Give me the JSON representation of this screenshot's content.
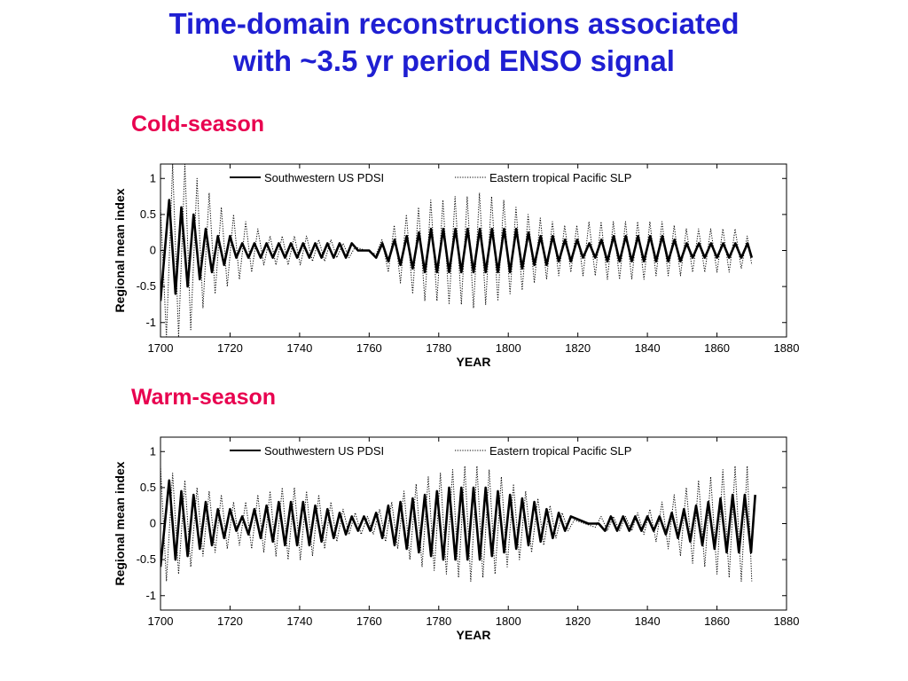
{
  "title": {
    "line1": "Time-domain reconstructions associated",
    "line2": "with ~3.5 yr period ENSO signal"
  },
  "panels": [
    {
      "label": "Cold-season"
    },
    {
      "label": "Warm-season"
    }
  ],
  "chart_data": [
    {
      "type": "line",
      "xlabel": "YEAR",
      "ylabel": "Regional mean index",
      "xlim": [
        1700,
        1880
      ],
      "ylim": [
        -1.2,
        1.2
      ],
      "xticks": [
        1700,
        1720,
        1740,
        1760,
        1780,
        1800,
        1820,
        1840,
        1860,
        1880
      ],
      "yticks": [
        1,
        0.5,
        0,
        -0.5,
        -1
      ],
      "ytick_labels": [
        "1",
        "0.5",
        "0",
        "-0.5",
        "-1"
      ],
      "grid": false,
      "legend_position": "top",
      "series": [
        {
          "name": "Southwestern US PDSI",
          "style": "solid",
          "x": [
            1700,
            1702.5,
            1704.3,
            1706,
            1707.8,
            1709.5,
            1711.3,
            1713,
            1714.8,
            1716.5,
            1718.3,
            1720,
            1721.8,
            1723.5,
            1725.3,
            1727,
            1728.8,
            1730.5,
            1732.3,
            1734,
            1735.8,
            1737.5,
            1739.3,
            1741,
            1742.8,
            1744.5,
            1746.3,
            1748,
            1749.8,
            1751.5,
            1753.3,
            1755,
            1756.8,
            1760,
            1762,
            1763.8,
            1765.5,
            1767.3,
            1769,
            1770.8,
            1772.5,
            1774.3,
            1776,
            1777.8,
            1779.5,
            1781.3,
            1783,
            1784.8,
            1786.5,
            1788.3,
            1790,
            1791.8,
            1793.5,
            1795.3,
            1797,
            1798.8,
            1800.5,
            1802.3,
            1804,
            1805.8,
            1807.5,
            1809.3,
            1811,
            1812.8,
            1814.5,
            1816.3,
            1818,
            1819.8,
            1821.5,
            1823.3,
            1825,
            1826.8,
            1828.5,
            1830.3,
            1832,
            1833.8,
            1835.5,
            1837.3,
            1839,
            1840.8,
            1842.5,
            1844.3,
            1846,
            1847.8,
            1849.5,
            1851.3,
            1853,
            1854.8,
            1856.5,
            1858.3,
            1860,
            1861.8,
            1863.5,
            1865.3,
            1867,
            1868.8,
            1870
          ],
          "y": [
            -0.7,
            0.7,
            -0.6,
            0.6,
            -0.5,
            0.5,
            -0.4,
            0.3,
            -0.3,
            0.2,
            -0.2,
            0.2,
            -0.1,
            0.1,
            -0.1,
            0.1,
            -0.1,
            0.1,
            -0.1,
            0.1,
            -0.1,
            0.1,
            -0.1,
            0.1,
            -0.1,
            0.1,
            -0.1,
            0.1,
            -0.1,
            0.1,
            -0.1,
            0.1,
            0,
            0,
            -0.1,
            0.1,
            -0.15,
            0.15,
            -0.2,
            0.2,
            -0.25,
            0.25,
            -0.3,
            0.3,
            -0.3,
            0.3,
            -0.3,
            0.3,
            -0.3,
            0.3,
            -0.3,
            0.3,
            -0.3,
            0.3,
            -0.3,
            0.3,
            -0.3,
            0.3,
            -0.25,
            0.25,
            -0.2,
            0.2,
            -0.2,
            0.2,
            -0.15,
            0.15,
            -0.15,
            0.15,
            -0.1,
            0.1,
            -0.1,
            0.15,
            -0.15,
            0.2,
            -0.15,
            0.2,
            -0.15,
            0.2,
            -0.15,
            0.2,
            -0.15,
            0.2,
            -0.15,
            0.15,
            -0.15,
            0.1,
            -0.1,
            0.1,
            -0.1,
            0.1,
            -0.1,
            0.1,
            -0.1,
            0.1,
            -0.1,
            0.1,
            -0.1
          ]
        },
        {
          "name": "Eastern tropical Pacific SLP",
          "style": "dotted",
          "x": [
            1700,
            1701.7,
            1703.5,
            1705.2,
            1707,
            1708.7,
            1710.5,
            1712.2,
            1714,
            1715.7,
            1717.5,
            1719.2,
            1721,
            1722.7,
            1724.5,
            1726.2,
            1728,
            1729.7,
            1731.5,
            1733.2,
            1735,
            1736.7,
            1738.5,
            1740.2,
            1742,
            1743.7,
            1745.5,
            1747.2,
            1749,
            1750.7,
            1752.5,
            1754.2,
            1756,
            1759,
            1762,
            1763.7,
            1765.5,
            1767.2,
            1769,
            1770.7,
            1772.5,
            1774.2,
            1776,
            1777.7,
            1779.5,
            1781.2,
            1783,
            1784.7,
            1786.5,
            1788.2,
            1790,
            1791.7,
            1793.5,
            1795.2,
            1797,
            1798.7,
            1800.5,
            1802.2,
            1804,
            1805.7,
            1807.5,
            1809.2,
            1811,
            1812.7,
            1814.5,
            1816.2,
            1818,
            1819.7,
            1821.5,
            1823.2,
            1825,
            1826.7,
            1828.5,
            1830.2,
            1832,
            1833.7,
            1835.5,
            1837.2,
            1839,
            1840.7,
            1842.5,
            1844.2,
            1846,
            1847.7,
            1849.5,
            1851.2,
            1853,
            1854.7,
            1856.5,
            1858.2,
            1860,
            1861.7,
            1863.5,
            1865.2,
            1867,
            1868.7,
            1870
          ],
          "y": [
            0.6,
            -1.2,
            1.2,
            -1.2,
            1.2,
            -1.1,
            1.0,
            -0.8,
            0.8,
            -0.6,
            0.6,
            -0.5,
            0.5,
            -0.4,
            0.4,
            -0.3,
            0.3,
            -0.2,
            0.2,
            -0.2,
            0.2,
            -0.2,
            0.2,
            -0.2,
            0.2,
            -0.15,
            0.15,
            -0.15,
            0.15,
            -0.1,
            0.1,
            -0.1,
            0.05,
            0,
            -0.05,
            0.15,
            -0.3,
            0.35,
            -0.45,
            0.5,
            -0.6,
            0.6,
            -0.7,
            0.7,
            -0.7,
            0.7,
            -0.75,
            0.75,
            -0.75,
            0.75,
            -0.8,
            0.8,
            -0.75,
            0.75,
            -0.7,
            0.7,
            -0.6,
            0.6,
            -0.55,
            0.5,
            -0.45,
            0.45,
            -0.4,
            0.4,
            -0.35,
            0.35,
            -0.3,
            0.35,
            -0.35,
            0.4,
            -0.35,
            0.4,
            -0.4,
            0.4,
            -0.4,
            0.4,
            -0.4,
            0.4,
            -0.4,
            0.4,
            -0.35,
            0.4,
            -0.35,
            0.35,
            -0.35,
            0.3,
            -0.3,
            0.3,
            -0.3,
            0.3,
            -0.3,
            0.3,
            -0.3,
            0.3,
            -0.25,
            0.2,
            -0.2
          ]
        }
      ]
    },
    {
      "type": "line",
      "xlabel": "YEAR",
      "ylabel": "Regional mean index",
      "xlim": [
        1700,
        1880
      ],
      "ylim": [
        -1.2,
        1.2
      ],
      "xticks": [
        1700,
        1720,
        1740,
        1760,
        1780,
        1800,
        1820,
        1840,
        1860,
        1880
      ],
      "yticks": [
        1,
        0.5,
        0,
        -0.5,
        -1
      ],
      "ytick_labels": [
        "1",
        "0.5",
        "0",
        "-0.5",
        "-1"
      ],
      "grid": false,
      "legend_position": "top",
      "series": [
        {
          "name": "Southwestern US PDSI",
          "style": "solid",
          "x": [
            1700,
            1702.5,
            1704.3,
            1706,
            1707.8,
            1709.5,
            1711.3,
            1713,
            1714.8,
            1716.5,
            1718.3,
            1720,
            1721.8,
            1723.5,
            1725.3,
            1727,
            1728.8,
            1730.5,
            1732.3,
            1734,
            1735.8,
            1737.5,
            1739.3,
            1741,
            1742.8,
            1744.5,
            1746.3,
            1748,
            1749.8,
            1751.5,
            1753.3,
            1755,
            1756.8,
            1758.5,
            1760.3,
            1762,
            1763.8,
            1765.5,
            1767.3,
            1769,
            1770.8,
            1772.5,
            1774.3,
            1776,
            1777.8,
            1779.5,
            1781.3,
            1783,
            1784.8,
            1786.5,
            1788.3,
            1790,
            1791.8,
            1793.5,
            1795.3,
            1797,
            1798.8,
            1800.5,
            1802.3,
            1804,
            1805.8,
            1807.5,
            1809.3,
            1811,
            1812.8,
            1814.5,
            1816.3,
            1818,
            1823,
            1826,
            1827.8,
            1829.5,
            1831.3,
            1833,
            1834.8,
            1836.5,
            1838.3,
            1840,
            1841.8,
            1843.5,
            1845.3,
            1847,
            1848.8,
            1850.5,
            1852.3,
            1854,
            1855.8,
            1857.5,
            1859.3,
            1861,
            1862.8,
            1864.5,
            1866.3,
            1868,
            1869.8,
            1871
          ],
          "y": [
            -0.6,
            0.6,
            -0.5,
            0.45,
            -0.45,
            0.4,
            -0.35,
            0.3,
            -0.3,
            0.2,
            -0.2,
            0.2,
            -0.1,
            0.1,
            -0.15,
            0.2,
            -0.2,
            0.25,
            -0.25,
            0.3,
            -0.3,
            0.3,
            -0.3,
            0.3,
            -0.3,
            0.25,
            -0.25,
            0.2,
            -0.2,
            0.15,
            -0.15,
            0.1,
            -0.1,
            0.1,
            -0.1,
            0.15,
            -0.2,
            0.25,
            -0.3,
            0.3,
            -0.35,
            0.35,
            -0.4,
            0.4,
            -0.45,
            0.45,
            -0.5,
            0.5,
            -0.5,
            0.5,
            -0.5,
            0.5,
            -0.5,
            0.5,
            -0.45,
            0.45,
            -0.4,
            0.4,
            -0.35,
            0.35,
            -0.3,
            0.3,
            -0.25,
            0.2,
            -0.2,
            0.15,
            -0.1,
            0.1,
            0,
            0,
            -0.1,
            0.1,
            -0.1,
            0.1,
            -0.1,
            0.1,
            -0.1,
            0.1,
            -0.1,
            0.1,
            -0.15,
            0.15,
            -0.2,
            0.2,
            -0.25,
            0.25,
            -0.3,
            0.3,
            -0.35,
            0.35,
            -0.4,
            0.4,
            -0.4,
            0.4,
            -0.4,
            0.4
          ]
        },
        {
          "name": "Eastern tropical Pacific SLP",
          "style": "dotted",
          "x": [
            1700,
            1701.7,
            1703.5,
            1705.2,
            1707,
            1708.7,
            1710.5,
            1712.2,
            1714,
            1715.7,
            1717.5,
            1719.2,
            1721,
            1722.7,
            1724.5,
            1726.2,
            1728,
            1729.7,
            1731.5,
            1733.2,
            1735,
            1736.7,
            1738.5,
            1740.2,
            1742,
            1743.7,
            1745.5,
            1747.2,
            1749,
            1750.7,
            1752.5,
            1754.2,
            1756,
            1757.7,
            1759.5,
            1761.2,
            1763,
            1764.7,
            1766.5,
            1768.2,
            1770,
            1771.7,
            1773.5,
            1775.2,
            1777,
            1778.7,
            1780.5,
            1782.2,
            1784,
            1785.7,
            1787.5,
            1789.2,
            1791,
            1792.7,
            1794.5,
            1796.2,
            1798,
            1799.7,
            1801.5,
            1803.2,
            1805,
            1806.7,
            1808.5,
            1810.2,
            1812,
            1813.7,
            1815.5,
            1817.2,
            1819,
            1822,
            1825,
            1826.7,
            1828.5,
            1830.2,
            1832,
            1833.7,
            1835.5,
            1837.2,
            1839,
            1840.7,
            1842.5,
            1844.2,
            1846,
            1847.7,
            1849.5,
            1851.2,
            1853,
            1854.7,
            1856.5,
            1858.2,
            1860,
            1861.7,
            1863.5,
            1865.2,
            1867,
            1868.7,
            1870
          ],
          "y": [
            0.8,
            -0.8,
            0.7,
            -0.7,
            0.6,
            -0.6,
            0.5,
            -0.45,
            0.45,
            -0.4,
            0.4,
            -0.35,
            0.3,
            -0.3,
            0.3,
            -0.35,
            0.4,
            -0.4,
            0.45,
            -0.45,
            0.5,
            -0.5,
            0.5,
            -0.5,
            0.45,
            -0.45,
            0.4,
            -0.35,
            0.3,
            -0.25,
            0.2,
            -0.15,
            0.15,
            -0.15,
            0.1,
            -0.15,
            0.2,
            -0.25,
            0.3,
            -0.35,
            0.45,
            -0.5,
            0.55,
            -0.6,
            0.65,
            -0.65,
            0.7,
            -0.7,
            0.75,
            -0.75,
            0.8,
            -0.8,
            0.8,
            -0.75,
            0.75,
            -0.7,
            0.65,
            -0.6,
            0.55,
            -0.5,
            0.45,
            -0.4,
            0.35,
            -0.3,
            0.25,
            -0.2,
            0.15,
            -0.1,
            0.05,
            0,
            -0.05,
            0.1,
            -0.1,
            0.1,
            -0.1,
            0.1,
            -0.1,
            0.15,
            -0.15,
            0.2,
            -0.25,
            0.3,
            -0.35,
            0.4,
            -0.45,
            0.5,
            -0.55,
            0.6,
            -0.6,
            0.65,
            -0.7,
            0.75,
            -0.75,
            0.8,
            -0.8,
            0.8,
            -0.8
          ]
        }
      ]
    }
  ]
}
